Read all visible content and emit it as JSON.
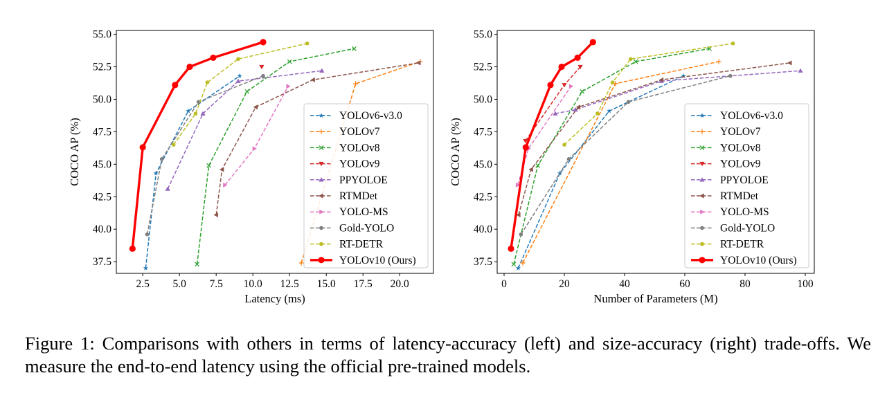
{
  "figure": {
    "caption": "Figure 1: Comparisons with others in terms of latency-accuracy (left) and size-accuracy (right) trade-offs. We measure the end-to-end latency using the official pre-trained models."
  },
  "colors": {
    "YOLOv6-v3.0": "#1f77b4",
    "YOLOv7": "#ff7f0e",
    "YOLOv8": "#2ca02c",
    "YOLOv9": "#d62728",
    "PPYOLOE": "#9467bd",
    "RTMDet": "#8c564b",
    "YOLO-MS": "#e377c2",
    "Gold-YOLO": "#7f7f7f",
    "RT-DETR": "#bcbd22",
    "YOLOv10 (Ours)": "#ff0000"
  },
  "markers": {
    "YOLOv6-v3.0": "star",
    "YOLOv7": "plus",
    "YOLOv8": "x",
    "YOLOv9": "triangle-down",
    "PPYOLOE": "triangle-up",
    "RTMDet": "triangle-left",
    "YOLO-MS": "triangle-right",
    "Gold-YOLO": "circle",
    "RT-DETR": "circle",
    "YOLOv10 (Ours)": "circle"
  },
  "chart_data": [
    {
      "type": "line",
      "xlabel": "Latency (ms)",
      "ylabel": "COCO AP (%)",
      "xlim": [
        0.7,
        22.3
      ],
      "ylim": [
        36.6,
        55.3
      ],
      "xticks": [
        "2.5",
        "5.0",
        "7.5",
        "10.0",
        "12.5",
        "15.0",
        "17.5",
        "20.0"
      ],
      "yticks": [
        "37.5",
        "40.0",
        "42.5",
        "45.0",
        "47.5",
        "50.0",
        "52.5",
        "55.0"
      ],
      "legend": "lower-right",
      "grid": false,
      "series": [
        {
          "name": "YOLOv6-v3.0",
          "x": [
            2.7,
            3.4,
            5.6,
            9.1
          ],
          "y": [
            37.0,
            44.3,
            49.1,
            51.8
          ]
        },
        {
          "name": "YOLOv7",
          "x": [
            13.3,
            17.0,
            21.4
          ],
          "y": [
            37.4,
            51.2,
            52.9
          ]
        },
        {
          "name": "YOLOv8",
          "x": [
            6.2,
            7.0,
            9.6,
            12.5,
            16.9
          ],
          "y": [
            37.3,
            44.9,
            50.6,
            52.9,
            53.9
          ]
        },
        {
          "name": "YOLOv9",
          "x": [
            10.6
          ],
          "y": [
            52.5
          ]
        },
        {
          "name": "PPYOLOE",
          "x": [
            4.2,
            6.6,
            9.0,
            14.7
          ],
          "y": [
            43.1,
            48.9,
            51.4,
            52.2
          ]
        },
        {
          "name": "RTMDet",
          "x": [
            7.5,
            7.9,
            10.2,
            14.1,
            21.3
          ],
          "y": [
            41.1,
            44.6,
            49.4,
            51.5,
            52.8
          ]
        },
        {
          "name": "YOLO-MS",
          "x": [
            8.1,
            10.1,
            12.4
          ],
          "y": [
            43.4,
            46.2,
            51.0
          ]
        },
        {
          "name": "Gold-YOLO",
          "x": [
            2.8,
            3.8,
            6.3,
            10.7
          ],
          "y": [
            39.6,
            45.4,
            49.8,
            51.8
          ]
        },
        {
          "name": "RT-DETR",
          "x": [
            4.6,
            6.1,
            6.9,
            9.0,
            13.7
          ],
          "y": [
            46.5,
            48.9,
            51.3,
            53.1,
            54.3
          ]
        },
        {
          "name": "YOLOv10 (Ours)",
          "x": [
            1.8,
            2.5,
            4.7,
            5.7,
            7.3,
            10.7
          ],
          "y": [
            38.5,
            46.3,
            51.1,
            52.5,
            53.2,
            54.4
          ]
        }
      ]
    },
    {
      "type": "line",
      "xlabel": "Number of Parameters (M)",
      "ylabel": "COCO AP (%)",
      "xlim": [
        -2.3,
        103
      ],
      "ylim": [
        36.6,
        55.3
      ],
      "xticks": [
        "0",
        "20",
        "40",
        "60",
        "80",
        "100"
      ],
      "yticks": [
        "37.5",
        "40.0",
        "42.5",
        "45.0",
        "47.5",
        "50.0",
        "52.5",
        "55.0"
      ],
      "legend": "lower-right",
      "grid": false,
      "series": [
        {
          "name": "YOLOv6-v3.0",
          "x": [
            4.7,
            18.5,
            34.9,
            59.6
          ],
          "y": [
            37.0,
            44.3,
            49.1,
            51.8
          ]
        },
        {
          "name": "YOLOv7",
          "x": [
            6.2,
            36.9,
            71.3
          ],
          "y": [
            37.4,
            51.2,
            52.9
          ]
        },
        {
          "name": "YOLOv8",
          "x": [
            3.2,
            11.2,
            25.9,
            43.7,
            68.2
          ],
          "y": [
            37.3,
            44.9,
            50.6,
            52.9,
            53.9
          ]
        },
        {
          "name": "YOLOv9",
          "x": [
            7.1,
            20.0,
            25.3
          ],
          "y": [
            46.8,
            51.1,
            52.5
          ]
        },
        {
          "name": "PPYOLOE",
          "x": [
            17.0,
            23.7,
            52.2,
            98.4
          ],
          "y": [
            48.9,
            49.2,
            51.4,
            52.2
          ]
        },
        {
          "name": "RTMDet",
          "x": [
            4.8,
            9.0,
            24.7,
            52.3,
            94.9
          ],
          "y": [
            41.1,
            44.6,
            49.4,
            51.5,
            52.8
          ]
        },
        {
          "name": "YOLO-MS",
          "x": [
            4.5,
            8.1,
            22.2
          ],
          "y": [
            43.4,
            46.2,
            51.0
          ]
        },
        {
          "name": "Gold-YOLO",
          "x": [
            5.6,
            21.5,
            41.3,
            75.1
          ],
          "y": [
            39.6,
            45.4,
            49.8,
            51.8
          ]
        },
        {
          "name": "RT-DETR",
          "x": [
            20.0,
            31.0,
            36.0,
            42.0,
            76.0
          ],
          "y": [
            46.5,
            48.9,
            51.3,
            53.1,
            54.3
          ]
        },
        {
          "name": "YOLOv10 (Ours)",
          "x": [
            2.3,
            7.2,
            15.4,
            19.1,
            24.4,
            29.5
          ],
          "y": [
            38.5,
            46.3,
            51.1,
            52.5,
            53.2,
            54.4
          ]
        }
      ]
    }
  ]
}
